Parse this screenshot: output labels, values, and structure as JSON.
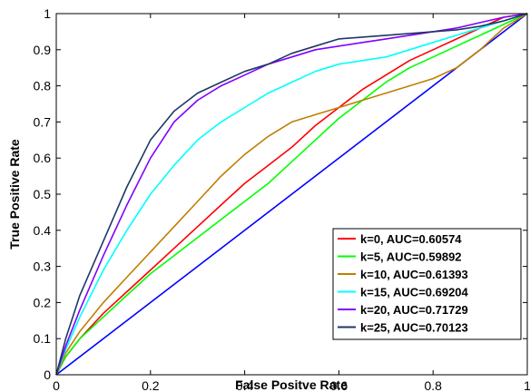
{
  "chart_data": {
    "type": "line",
    "xlabel": "False Positve Rate",
    "ylabel": "True Positive Rate",
    "xlim": [
      0,
      1
    ],
    "ylim": [
      0,
      1
    ],
    "xticks": [
      "0",
      "0.2",
      "0.4",
      "0.6",
      "0.8",
      "1"
    ],
    "yticks": [
      "0",
      "0.1",
      "0.2",
      "0.3",
      "0.4",
      "0.5",
      "0.6",
      "0.7",
      "0.8",
      "0.9",
      "1"
    ],
    "grid": false,
    "legend_position": "lower-right",
    "diagonal": {
      "x": [
        0,
        1
      ],
      "y": [
        0,
        1
      ],
      "color": "#0000ff"
    },
    "series": [
      {
        "name": "k=0, AUC=0.60574",
        "color": "#ff0000",
        "x": [
          0,
          0.02,
          0.05,
          0.1,
          0.15,
          0.2,
          0.25,
          0.3,
          0.35,
          0.4,
          0.45,
          0.5,
          0.55,
          0.6,
          0.65,
          0.7,
          0.75,
          0.8,
          0.85,
          0.9,
          0.95,
          1
        ],
        "y": [
          0,
          0.05,
          0.1,
          0.17,
          0.23,
          0.29,
          0.35,
          0.41,
          0.47,
          0.53,
          0.58,
          0.63,
          0.69,
          0.74,
          0.79,
          0.83,
          0.87,
          0.9,
          0.93,
          0.96,
          0.99,
          1
        ]
      },
      {
        "name": "k=5, AUC=0.59892",
        "color": "#00ff00",
        "x": [
          0,
          0.02,
          0.05,
          0.1,
          0.15,
          0.2,
          0.25,
          0.3,
          0.35,
          0.4,
          0.45,
          0.5,
          0.55,
          0.6,
          0.65,
          0.7,
          0.75,
          0.8,
          0.85,
          0.9,
          0.95,
          1
        ],
        "y": [
          0,
          0.05,
          0.1,
          0.16,
          0.22,
          0.28,
          0.33,
          0.38,
          0.43,
          0.48,
          0.53,
          0.59,
          0.65,
          0.71,
          0.76,
          0.81,
          0.85,
          0.88,
          0.91,
          0.94,
          0.97,
          1
        ]
      },
      {
        "name": "k=10, AUC=0.61393",
        "color": "#bf7f00",
        "x": [
          0,
          0.02,
          0.05,
          0.1,
          0.15,
          0.2,
          0.25,
          0.3,
          0.35,
          0.4,
          0.45,
          0.5,
          0.55,
          0.6,
          0.65,
          0.7,
          0.75,
          0.8,
          0.85,
          0.9,
          0.95,
          1
        ],
        "y": [
          0,
          0.06,
          0.12,
          0.2,
          0.27,
          0.34,
          0.41,
          0.48,
          0.55,
          0.61,
          0.66,
          0.7,
          0.72,
          0.74,
          0.76,
          0.78,
          0.8,
          0.82,
          0.85,
          0.9,
          0.96,
          1
        ]
      },
      {
        "name": "k=15, AUC=0.69204",
        "color": "#00ffff",
        "x": [
          0,
          0.02,
          0.05,
          0.1,
          0.15,
          0.2,
          0.25,
          0.3,
          0.35,
          0.4,
          0.45,
          0.5,
          0.55,
          0.6,
          0.65,
          0.7,
          0.75,
          0.8,
          0.85,
          0.9,
          0.95,
          1
        ],
        "y": [
          0,
          0.07,
          0.16,
          0.29,
          0.4,
          0.5,
          0.58,
          0.65,
          0.7,
          0.74,
          0.78,
          0.81,
          0.84,
          0.86,
          0.87,
          0.88,
          0.9,
          0.92,
          0.94,
          0.96,
          0.98,
          1
        ]
      },
      {
        "name": "k=20, AUC=0.71729",
        "color": "#8000ff",
        "x": [
          0,
          0.02,
          0.05,
          0.1,
          0.15,
          0.2,
          0.25,
          0.3,
          0.35,
          0.4,
          0.45,
          0.5,
          0.55,
          0.6,
          0.65,
          0.7,
          0.75,
          0.8,
          0.85,
          0.9,
          0.95,
          1
        ],
        "y": [
          0,
          0.08,
          0.18,
          0.33,
          0.47,
          0.6,
          0.7,
          0.76,
          0.8,
          0.83,
          0.86,
          0.88,
          0.9,
          0.91,
          0.92,
          0.93,
          0.94,
          0.95,
          0.96,
          0.975,
          0.99,
          1
        ]
      },
      {
        "name": "k=25, AUC=0.70123",
        "color": "#1f3864",
        "x": [
          0,
          0.02,
          0.05,
          0.1,
          0.15,
          0.2,
          0.25,
          0.3,
          0.35,
          0.4,
          0.45,
          0.5,
          0.55,
          0.6,
          0.65,
          0.7,
          0.75,
          0.8,
          0.85,
          0.9,
          0.95,
          1
        ],
        "y": [
          0,
          0.1,
          0.22,
          0.37,
          0.52,
          0.65,
          0.73,
          0.78,
          0.81,
          0.84,
          0.86,
          0.89,
          0.91,
          0.93,
          0.935,
          0.94,
          0.945,
          0.95,
          0.955,
          0.965,
          0.98,
          1
        ]
      }
    ]
  }
}
